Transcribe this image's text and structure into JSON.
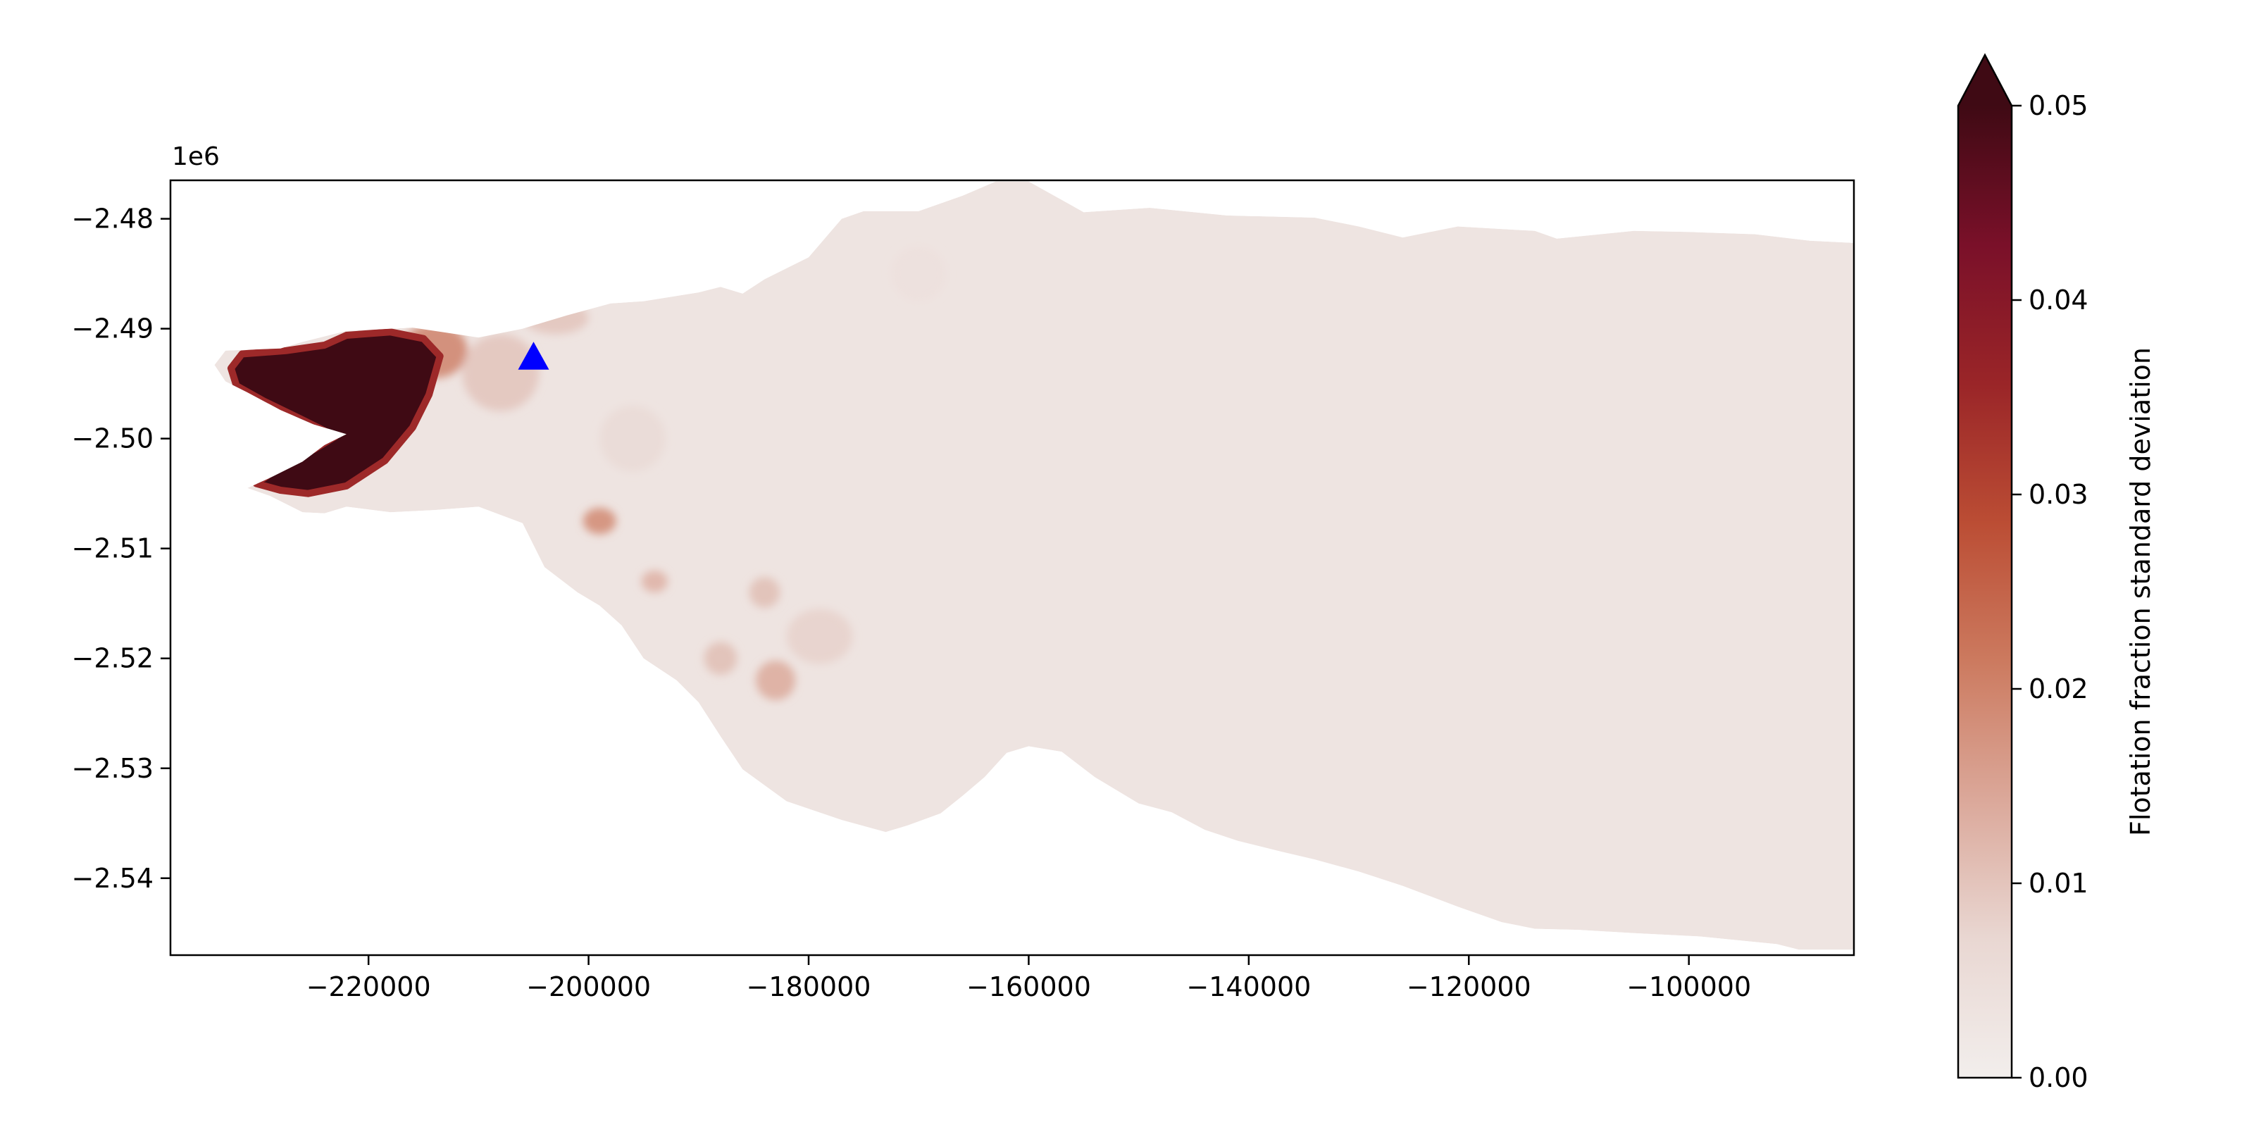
{
  "chart_data": {
    "type": "heatmap",
    "title": "",
    "xlabel": "",
    "ylabel": "",
    "x_range": [
      -238000,
      -85000
    ],
    "y_range": [
      -2547000,
      -2476500
    ],
    "y_offset_label": "1e6",
    "x_ticks": [
      -220000,
      -200000,
      -180000,
      -160000,
      -140000,
      -120000,
      -100000
    ],
    "x_tick_labels": [
      "−220000",
      "−200000",
      "−180000",
      "−160000",
      "−140000",
      "−120000",
      "−100000"
    ],
    "y_ticks": [
      -2480000,
      -2490000,
      -2500000,
      -2510000,
      -2520000,
      -2530000,
      -2540000
    ],
    "y_tick_labels": [
      "−2.48",
      "−2.49",
      "−2.50",
      "−2.51",
      "−2.52",
      "−2.53",
      "−2.54"
    ],
    "grid": false,
    "outline": [
      [
        -233000,
        -2492000
      ],
      [
        -228000,
        -2491800
      ],
      [
        -226000,
        -2491200
      ],
      [
        -222000,
        -2490200
      ],
      [
        -216000,
        -2489900
      ],
      [
        -210000,
        -2490800
      ],
      [
        -206000,
        -2490000
      ],
      [
        -202000,
        -2488800
      ],
      [
        -198000,
        -2487700
      ],
      [
        -195000,
        -2487500
      ],
      [
        -190000,
        -2486700
      ],
      [
        -188000,
        -2486200
      ],
      [
        -186000,
        -2486800
      ],
      [
        -184000,
        -2485500
      ],
      [
        -180000,
        -2483500
      ],
      [
        -177000,
        -2480000
      ],
      [
        -175000,
        -2479300
      ],
      [
        -170000,
        -2479300
      ],
      [
        -166000,
        -2477900
      ],
      [
        -163000,
        -2476600
      ],
      [
        -160000,
        -2476600
      ],
      [
        -155000,
        -2479400
      ],
      [
        -149000,
        -2479000
      ],
      [
        -142000,
        -2479700
      ],
      [
        -134000,
        -2479900
      ],
      [
        -130000,
        -2480700
      ],
      [
        -126000,
        -2481700
      ],
      [
        -121000,
        -2480700
      ],
      [
        -114000,
        -2481100
      ],
      [
        -112000,
        -2481800
      ],
      [
        -105000,
        -2481100
      ],
      [
        -100000,
        -2481200
      ],
      [
        -94000,
        -2481400
      ],
      [
        -89000,
        -2482000
      ],
      [
        -85000,
        -2482200
      ],
      [
        -85000,
        -2546500
      ],
      [
        -90000,
        -2546500
      ],
      [
        -92000,
        -2546000
      ],
      [
        -99000,
        -2545300
      ],
      [
        -105000,
        -2545000
      ],
      [
        -110000,
        -2544700
      ],
      [
        -114000,
        -2544600
      ],
      [
        -117000,
        -2544000
      ],
      [
        -121000,
        -2542600
      ],
      [
        -126000,
        -2540700
      ],
      [
        -130000,
        -2539400
      ],
      [
        -134000,
        -2538300
      ],
      [
        -137000,
        -2537600
      ],
      [
        -141000,
        -2536600
      ],
      [
        -144000,
        -2535600
      ],
      [
        -147000,
        -2534000
      ],
      [
        -150000,
        -2533200
      ],
      [
        -154000,
        -2530800
      ],
      [
        -157000,
        -2528500
      ],
      [
        -160000,
        -2528000
      ],
      [
        -162000,
        -2528600
      ],
      [
        -164000,
        -2530800
      ],
      [
        -166000,
        -2532500
      ],
      [
        -168000,
        -2534100
      ],
      [
        -171000,
        -2535200
      ],
      [
        -173000,
        -2535800
      ],
      [
        -177000,
        -2534700
      ],
      [
        -182000,
        -2533000
      ],
      [
        -186000,
        -2530100
      ],
      [
        -188000,
        -2527100
      ],
      [
        -190000,
        -2524000
      ],
      [
        -192000,
        -2522000
      ],
      [
        -195000,
        -2520000
      ],
      [
        -197000,
        -2517000
      ],
      [
        -199000,
        -2515200
      ],
      [
        -201000,
        -2514000
      ],
      [
        -204000,
        -2511700
      ],
      [
        -206000,
        -2507700
      ],
      [
        -210000,
        -2506200
      ],
      [
        -214000,
        -2506500
      ],
      [
        -218000,
        -2506700
      ],
      [
        -222000,
        -2506200
      ],
      [
        -224000,
        -2506800
      ],
      [
        -226000,
        -2506700
      ],
      [
        -229000,
        -2505200
      ],
      [
        -231000,
        -2504500
      ],
      [
        -229000,
        -2503600
      ],
      [
        -226000,
        -2502100
      ],
      [
        -224000,
        -2500600
      ],
      [
        -222000,
        -2499600
      ],
      [
        -225000,
        -2498700
      ],
      [
        -228000,
        -2497400
      ],
      [
        -231000,
        -2495800
      ],
      [
        -233000,
        -2494800
      ],
      [
        -234000,
        -2493300
      ]
    ],
    "high_region": [
      [
        -231500,
        -2492300
      ],
      [
        -227500,
        -2492000
      ],
      [
        -224000,
        -2491500
      ],
      [
        -222000,
        -2490600
      ],
      [
        -218000,
        -2490300
      ],
      [
        -215000,
        -2490900
      ],
      [
        -213500,
        -2492500
      ],
      [
        -214500,
        -2496000
      ],
      [
        -216000,
        -2499000
      ],
      [
        -218500,
        -2502000
      ],
      [
        -222000,
        -2504300
      ],
      [
        -225500,
        -2505000
      ],
      [
        -228000,
        -2504700
      ],
      [
        -230200,
        -2504100
      ],
      [
        -228000,
        -2502500
      ],
      [
        -225000,
        -2501000
      ],
      [
        -223000,
        -2499800
      ],
      [
        -226000,
        -2498300
      ],
      [
        -229500,
        -2496600
      ],
      [
        -232000,
        -2495200
      ],
      [
        -232500,
        -2493600
      ]
    ],
    "value_field": {
      "label": "Flotation fraction standard deviation",
      "background_value": 0.003,
      "hotspots": [
        {
          "x": -214000,
          "y": -2492000,
          "sx": 3000,
          "sy": 2500,
          "value": 0.02
        },
        {
          "x": -208000,
          "y": -2494000,
          "sx": 3500,
          "sy": 3500,
          "value": 0.01
        },
        {
          "x": -199000,
          "y": -2507500,
          "sx": 1500,
          "sy": 1200,
          "value": 0.019
        },
        {
          "x": -194000,
          "y": -2513000,
          "sx": 1200,
          "sy": 1000,
          "value": 0.013
        },
        {
          "x": -184000,
          "y": -2514000,
          "sx": 1400,
          "sy": 1400,
          "value": 0.011
        },
        {
          "x": -183000,
          "y": -2522000,
          "sx": 1800,
          "sy": 1800,
          "value": 0.014
        },
        {
          "x": -188000,
          "y": -2520000,
          "sx": 1500,
          "sy": 1500,
          "value": 0.011
        },
        {
          "x": -179000,
          "y": -2518000,
          "sx": 3000,
          "sy": 2500,
          "value": 0.008
        },
        {
          "x": -203000,
          "y": -2489000,
          "sx": 3000,
          "sy": 1500,
          "value": 0.01
        },
        {
          "x": -196000,
          "y": -2500000,
          "sx": 3000,
          "sy": 3000,
          "value": 0.006
        },
        {
          "x": -170000,
          "y": -2485000,
          "sx": 2500,
          "sy": 2500,
          "value": 0.004
        }
      ]
    },
    "marker": {
      "x": -205000,
      "y": -2492600,
      "shape": "triangle",
      "color": "#0000ff"
    },
    "colorbar": {
      "label": "Flotation fraction standard deviation",
      "min": 0.0,
      "max": 0.05,
      "extend": "max",
      "ticks": [
        0.0,
        0.01,
        0.02,
        0.03,
        0.04,
        0.05
      ],
      "tick_labels": [
        "0.00",
        "0.01",
        "0.02",
        "0.03",
        "0.04",
        "0.05"
      ],
      "colors": [
        "#f2eeec",
        "#e9d7d2",
        "#dba89a",
        "#cc7a5f",
        "#bb4d34",
        "#9a2528",
        "#7a1029",
        "#3f0a14"
      ]
    }
  }
}
